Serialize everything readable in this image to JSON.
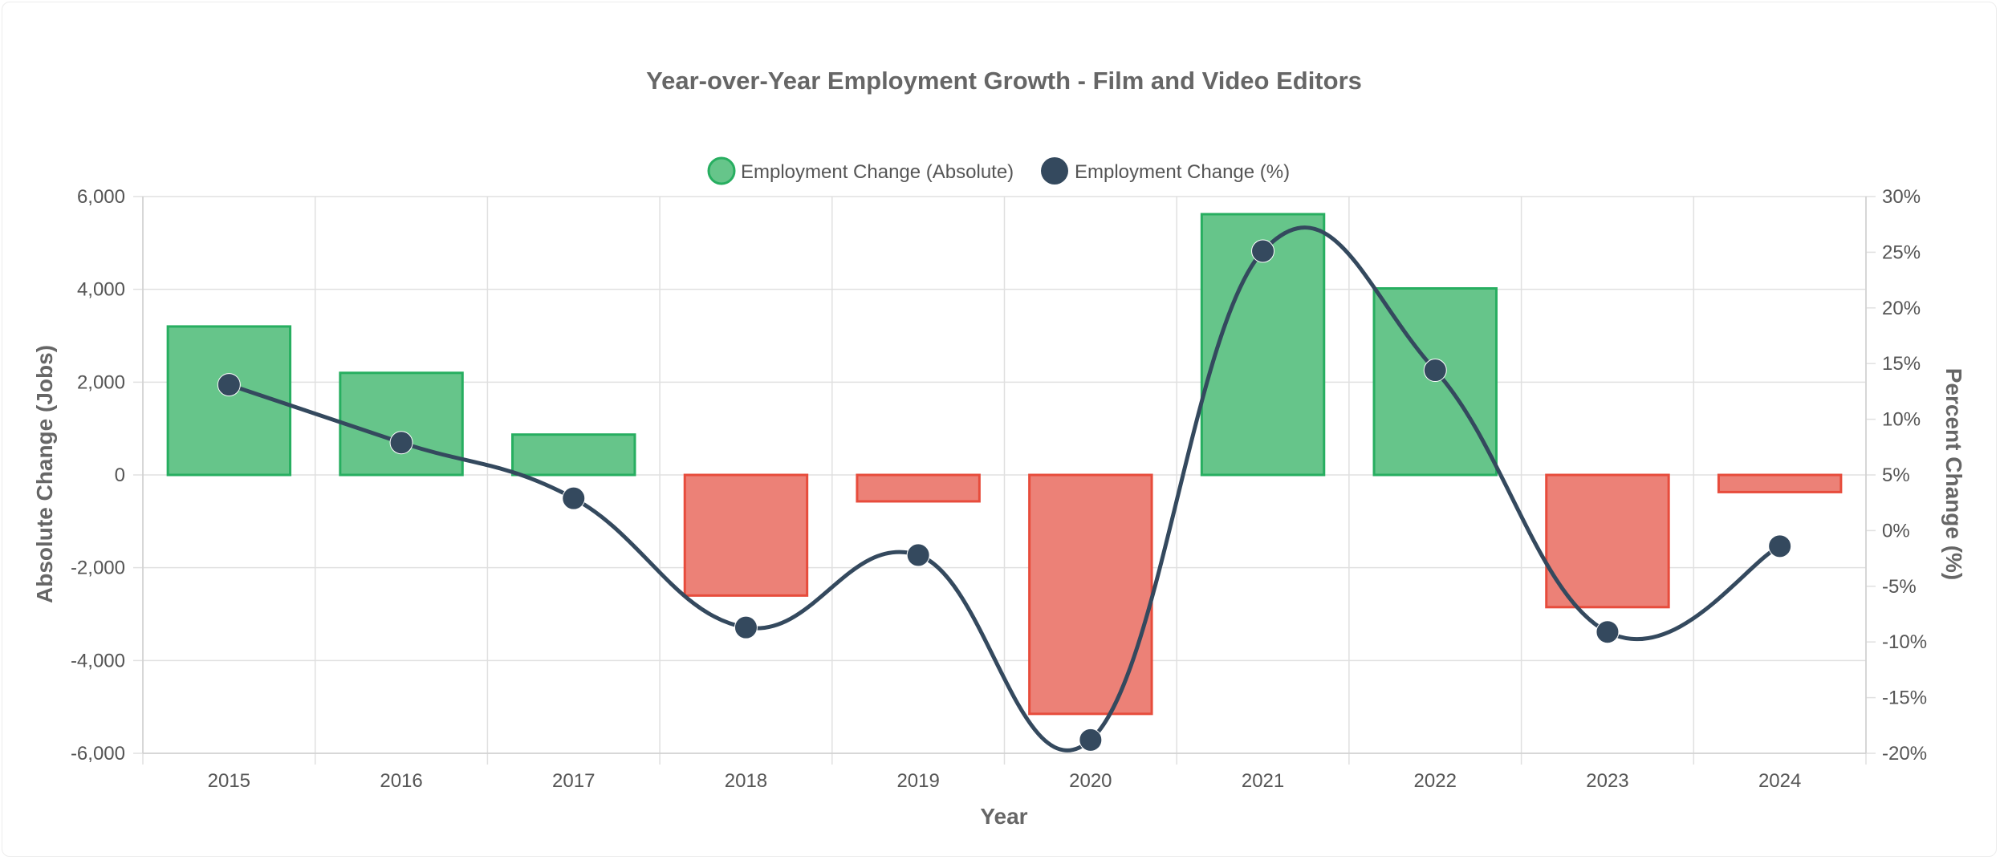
{
  "chart_data": {
    "type": "bar",
    "title": "Year-over-Year Employment Growth - Film and Video Editors",
    "xlabel": "Year",
    "ylabel": "Absolute Change (Jobs)",
    "y2label": "Percent Change (%)",
    "categories": [
      "2015",
      "2016",
      "2017",
      "2018",
      "2019",
      "2020",
      "2021",
      "2022",
      "2023",
      "2024"
    ],
    "ylim": [
      -6000,
      6000
    ],
    "y2lim": [
      -20,
      30
    ],
    "y_ticks": [
      "6,000",
      "4,000",
      "2,000",
      "0",
      "-2,000",
      "-4,000",
      "-6,000"
    ],
    "y2_ticks": [
      "30%",
      "25%",
      "20%",
      "15%",
      "10%",
      "5%",
      "0%",
      "-5%",
      "-10%",
      "-15%",
      "-20%"
    ],
    "grid": true,
    "legend_position": "top",
    "series": [
      {
        "name": "Employment Change (Absolute)",
        "type": "bar",
        "axis": "left",
        "values": [
          3200,
          2200,
          870,
          -2600,
          -570,
          -5150,
          5620,
          4020,
          -2850,
          -370
        ],
        "positive_color": "#27ae60",
        "negative_color": "#e74c3c"
      },
      {
        "name": "Employment Change (%)",
        "type": "line",
        "axis": "right",
        "values": [
          13.1,
          7.9,
          2.9,
          -8.7,
          -2.2,
          -18.8,
          25.1,
          14.4,
          -9.1,
          -1.4
        ],
        "color": "#34495e"
      }
    ]
  }
}
